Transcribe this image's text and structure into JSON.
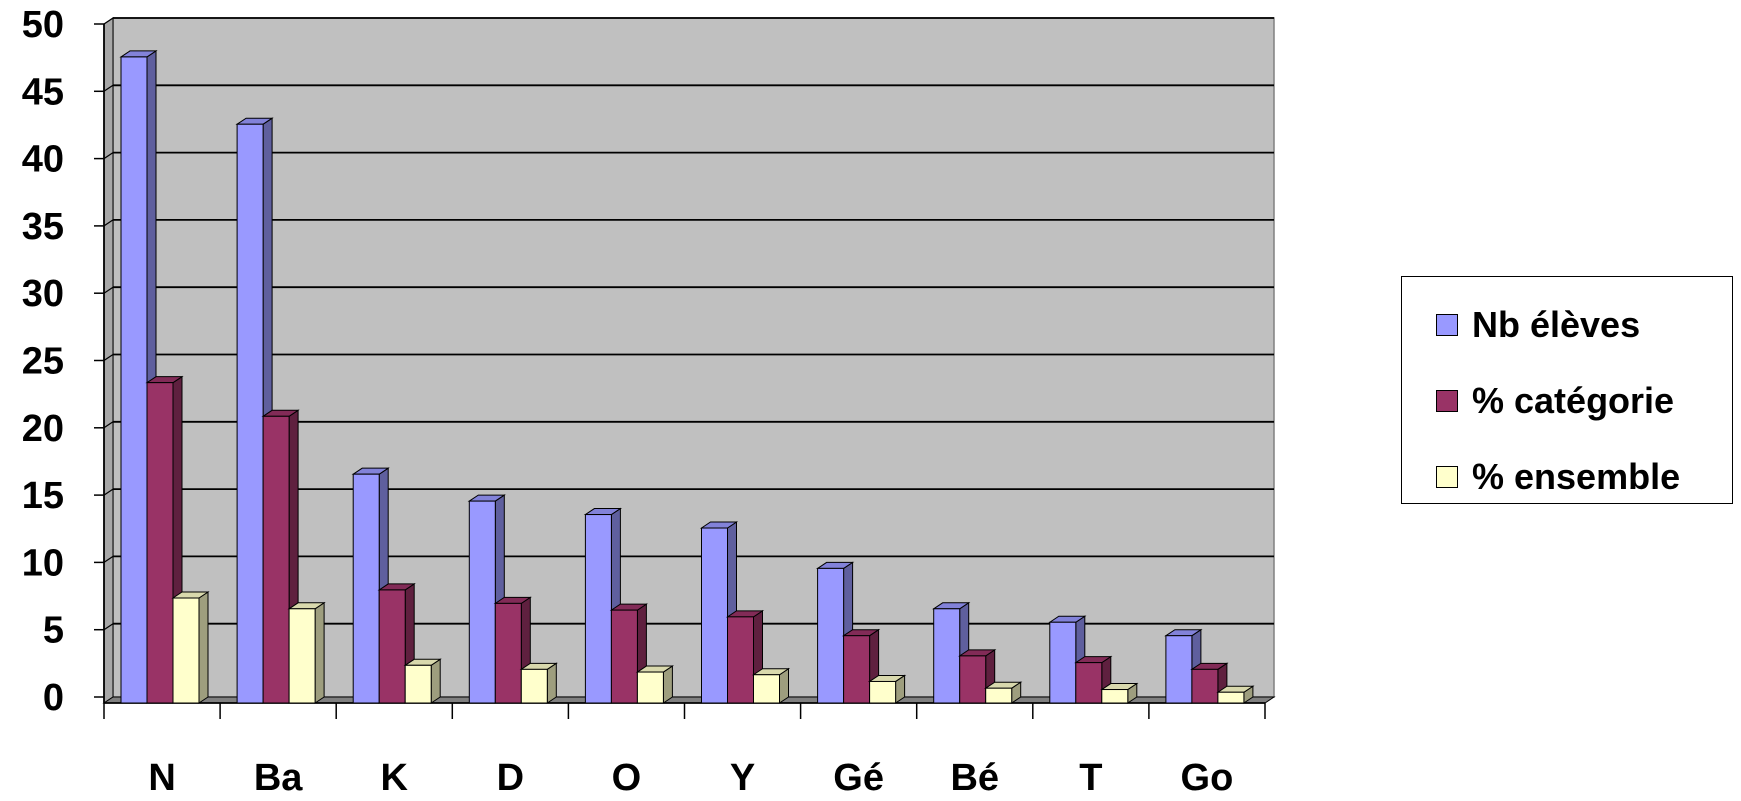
{
  "chart_data": {
    "type": "bar",
    "title": "",
    "xlabel": "",
    "ylabel": "",
    "categories": [
      "N",
      "Ba",
      "K",
      "D",
      "O",
      "Y",
      "Gé",
      "Bé",
      "T",
      "Go"
    ],
    "series": [
      {
        "name": "Nb élèves",
        "color": "#9999ff",
        "values": [
          48,
          43,
          17,
          15,
          14,
          13,
          10,
          7,
          6,
          5
        ]
      },
      {
        "name": "% catégorie",
        "color": "#993366",
        "values": [
          23.8,
          21.3,
          8.4,
          7.4,
          6.9,
          6.4,
          5.0,
          3.5,
          3.0,
          2.5
        ]
      },
      {
        "name": "% ensemble",
        "color": "#ffffcc",
        "values": [
          7.8,
          7.0,
          2.8,
          2.5,
          2.3,
          2.1,
          1.6,
          1.1,
          1.0,
          0.8
        ]
      }
    ],
    "ylim": [
      0,
      50
    ],
    "yticks": [
      0,
      5,
      10,
      15,
      20,
      25,
      30,
      35,
      40,
      45,
      50
    ],
    "grid": true,
    "legend_position": "right",
    "style": "3d-clustered-column",
    "plot_background": "#c0c0c0"
  }
}
